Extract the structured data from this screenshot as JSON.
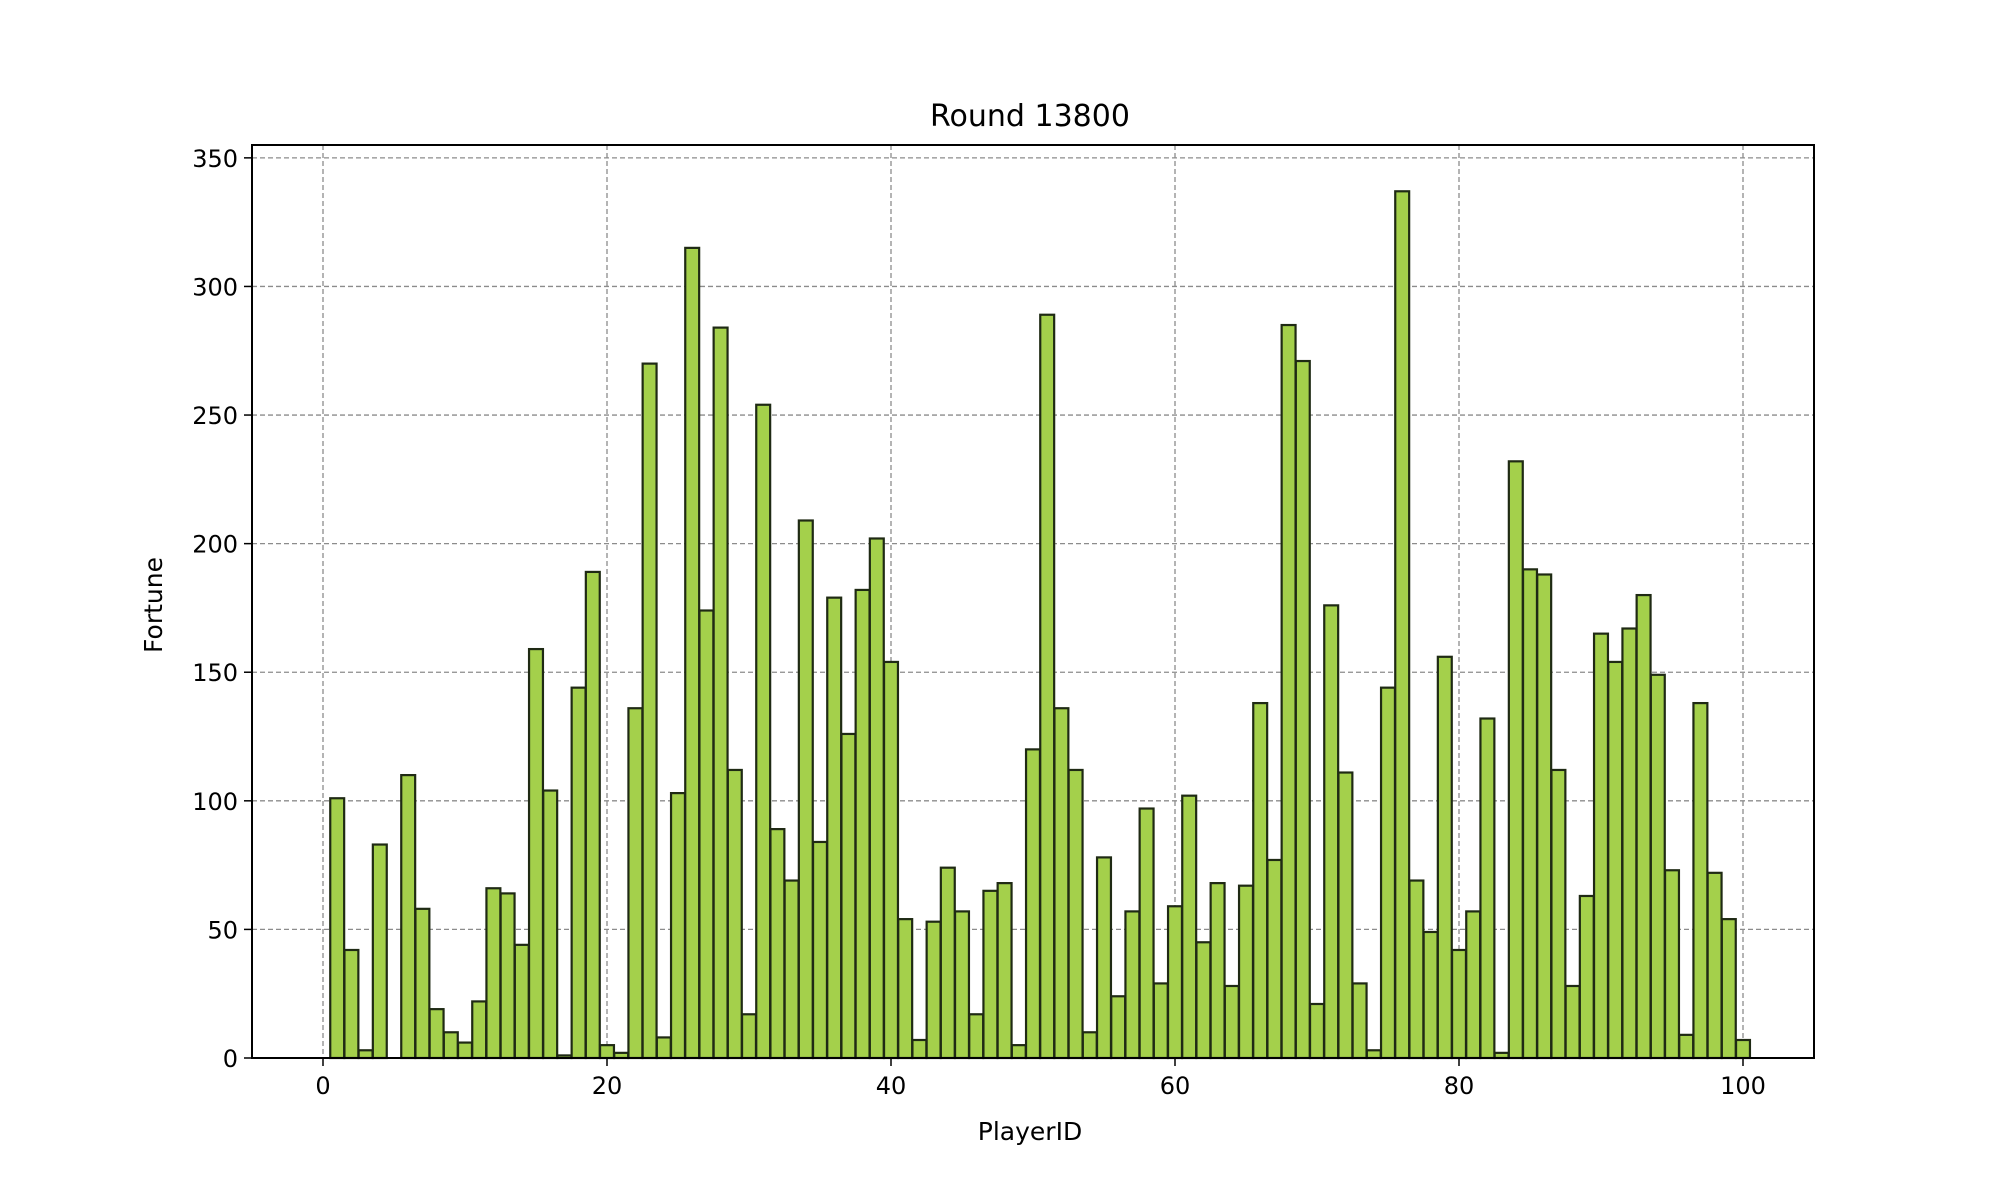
{
  "chart_data": {
    "type": "bar",
    "title": "Round 13800",
    "xlabel": "PlayerID",
    "ylabel": "Fortune",
    "xlim": [
      -5,
      105
    ],
    "ylim": [
      0,
      355
    ],
    "xticks": [
      0,
      20,
      40,
      60,
      80,
      100
    ],
    "yticks": [
      0,
      50,
      100,
      150,
      200,
      250,
      300,
      350
    ],
    "grid": true,
    "bar_color": "#a4d04b",
    "edge_color": "#1f2a14",
    "grid_color": "#8c8c8c",
    "x": [
      1,
      2,
      3,
      4,
      5,
      6,
      7,
      8,
      9,
      10,
      11,
      12,
      13,
      14,
      15,
      16,
      17,
      18,
      19,
      20,
      21,
      22,
      23,
      24,
      25,
      26,
      27,
      28,
      29,
      30,
      31,
      32,
      33,
      34,
      35,
      36,
      37,
      38,
      39,
      40,
      41,
      42,
      43,
      44,
      45,
      46,
      47,
      48,
      49,
      50,
      51,
      52,
      53,
      54,
      55,
      56,
      57,
      58,
      59,
      60,
      61,
      62,
      63,
      64,
      65,
      66,
      67,
      68,
      69,
      70,
      71,
      72,
      73,
      74,
      75,
      76,
      77,
      78,
      79,
      80,
      81,
      82,
      83,
      84,
      85,
      86,
      87,
      88,
      89,
      90,
      91,
      92,
      93,
      94,
      95,
      96,
      97,
      98,
      99,
      100
    ],
    "values": [
      101,
      42,
      3,
      83,
      0,
      110,
      58,
      19,
      10,
      6,
      22,
      66,
      64,
      44,
      159,
      104,
      1,
      144,
      189,
      5,
      2,
      136,
      270,
      8,
      103,
      315,
      174,
      284,
      112,
      17,
      254,
      89,
      69,
      209,
      84,
      179,
      126,
      182,
      202,
      154,
      54,
      7,
      53,
      74,
      57,
      17,
      65,
      68,
      5,
      120,
      289,
      136,
      112,
      10,
      78,
      24,
      57,
      97,
      29,
      59,
      102,
      45,
      68,
      28,
      67,
      138,
      77,
      285,
      271,
      21,
      176,
      111,
      29,
      3,
      144,
      337,
      69,
      49,
      156,
      42,
      57,
      132,
      2,
      232,
      190,
      188,
      112,
      28,
      63,
      165,
      154,
      167,
      180,
      149,
      73,
      9,
      138,
      72,
      54,
      7
    ]
  }
}
